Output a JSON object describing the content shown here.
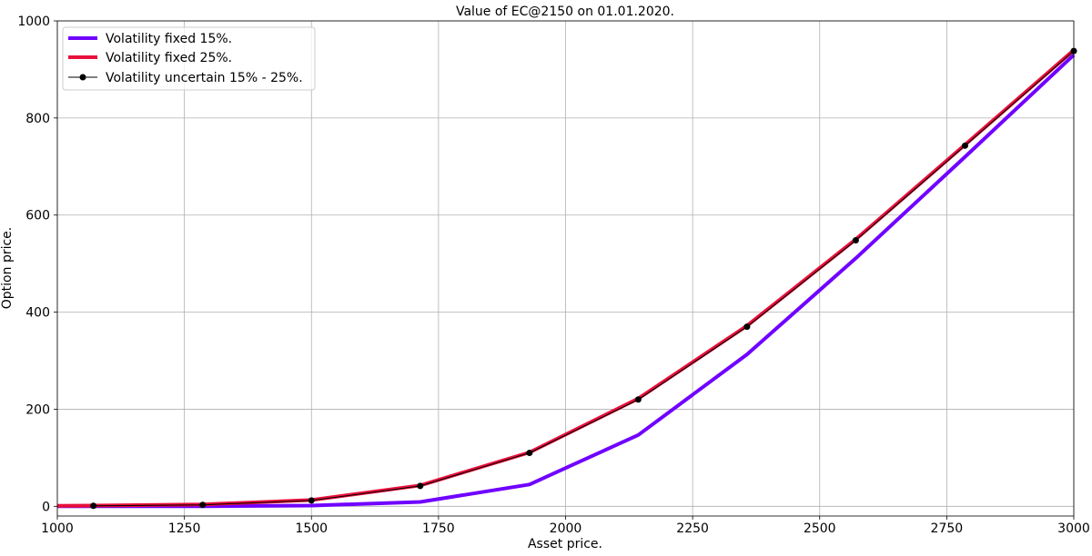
{
  "chart_data": {
    "type": "line",
    "title": "Value of EC@2150 on 01.01.2020.",
    "xlabel": "Asset price.",
    "ylabel": "Option price.",
    "xlim": [
      1000,
      3000
    ],
    "ylim": [
      -20,
      1000
    ],
    "xticks": [
      1000,
      1250,
      1500,
      1750,
      2000,
      2250,
      2500,
      2750,
      3000
    ],
    "yticks": [
      0,
      200,
      400,
      600,
      800,
      1000
    ],
    "grid": true,
    "legend_position": "top-left",
    "series": [
      {
        "name": "Volatility fixed 15%.",
        "color": "#7000ff",
        "style": "line",
        "x": [
          1000,
          1071,
          1286,
          1500,
          1714,
          1929,
          2143,
          2357,
          2571,
          2786,
          3000
        ],
        "values": [
          0,
          0,
          0.3,
          1.5,
          9,
          45,
          147,
          313,
          511,
          720,
          930
        ]
      },
      {
        "name": "Volatility fixed 25%.",
        "color": "#e8103c",
        "style": "line",
        "x": [
          1000,
          1071,
          1286,
          1500,
          1714,
          1929,
          2143,
          2357,
          2571,
          2786,
          3000
        ],
        "values": [
          1,
          1.5,
          4,
          13,
          43,
          111,
          222,
          372,
          550,
          745,
          940
        ]
      },
      {
        "name": "Volatility uncertain 15% - 25%.",
        "color": "#000000",
        "style": "line-marker",
        "x": [
          1071,
          1286,
          1500,
          1714,
          1929,
          2143,
          2357,
          2571,
          2786,
          3000
        ],
        "values": [
          1,
          3,
          12,
          42,
          110,
          220,
          370,
          548,
          743,
          938
        ]
      }
    ]
  }
}
